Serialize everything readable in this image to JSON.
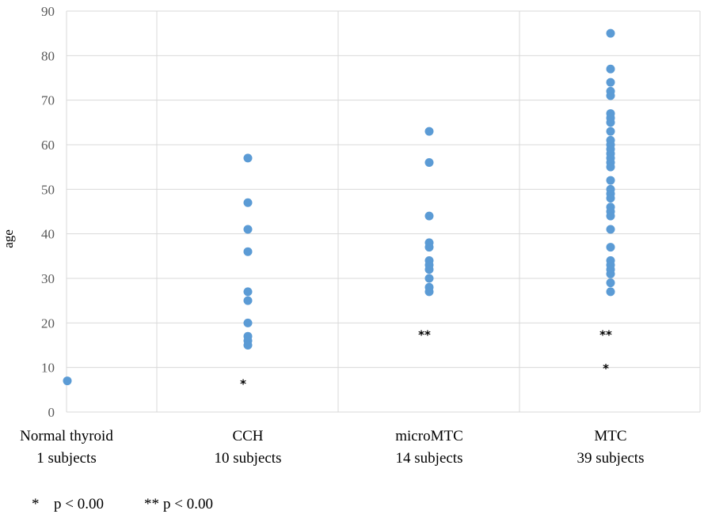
{
  "chart_data": {
    "type": "scatter",
    "ylabel": "age",
    "ylim": [
      0,
      90
    ],
    "y_ticks": [
      "0",
      "10",
      "20",
      "30",
      "40",
      "50",
      "60",
      "70",
      "80",
      "90"
    ],
    "grid": true,
    "marker_color": "#5b9bd5",
    "categories": [
      {
        "name": "Normal thyroid",
        "subjects": "1 subjects"
      },
      {
        "name": "CCH",
        "subjects": "10 subjects"
      },
      {
        "name": "microMTC",
        "subjects": "14 subjects"
      },
      {
        "name": "MTC",
        "subjects": "39 subjects"
      }
    ],
    "points": [
      {
        "category": "Normal thyroid",
        "ages": [
          7
        ]
      },
      {
        "category": "CCH",
        "ages": [
          57,
          47,
          41,
          36,
          27,
          25,
          20,
          17,
          16,
          15
        ]
      },
      {
        "category": "microMTC",
        "ages": [
          63,
          56,
          44,
          38,
          37,
          34,
          33,
          32,
          30,
          28,
          27
        ]
      },
      {
        "category": "MTC",
        "ages": [
          85,
          77,
          74,
          72,
          71,
          67,
          66,
          65,
          63,
          61,
          60,
          59,
          58,
          57,
          56,
          55,
          52,
          50,
          49,
          48,
          46,
          45,
          44,
          41,
          37,
          34,
          33,
          32,
          31,
          29,
          27
        ]
      }
    ],
    "annotations": [
      {
        "category": "CCH",
        "text": "*",
        "y": 7
      },
      {
        "category": "microMTC",
        "text": "**",
        "y": 18
      },
      {
        "category": "MTC",
        "text": "**",
        "y": 18
      },
      {
        "category": "MTC",
        "text": "*",
        "y": 10.5
      }
    ],
    "footnote": {
      "single": {
        "marker": "*",
        "text": "p < 0.00"
      },
      "double": {
        "marker": "**",
        "text": "p < 0.00"
      }
    }
  }
}
